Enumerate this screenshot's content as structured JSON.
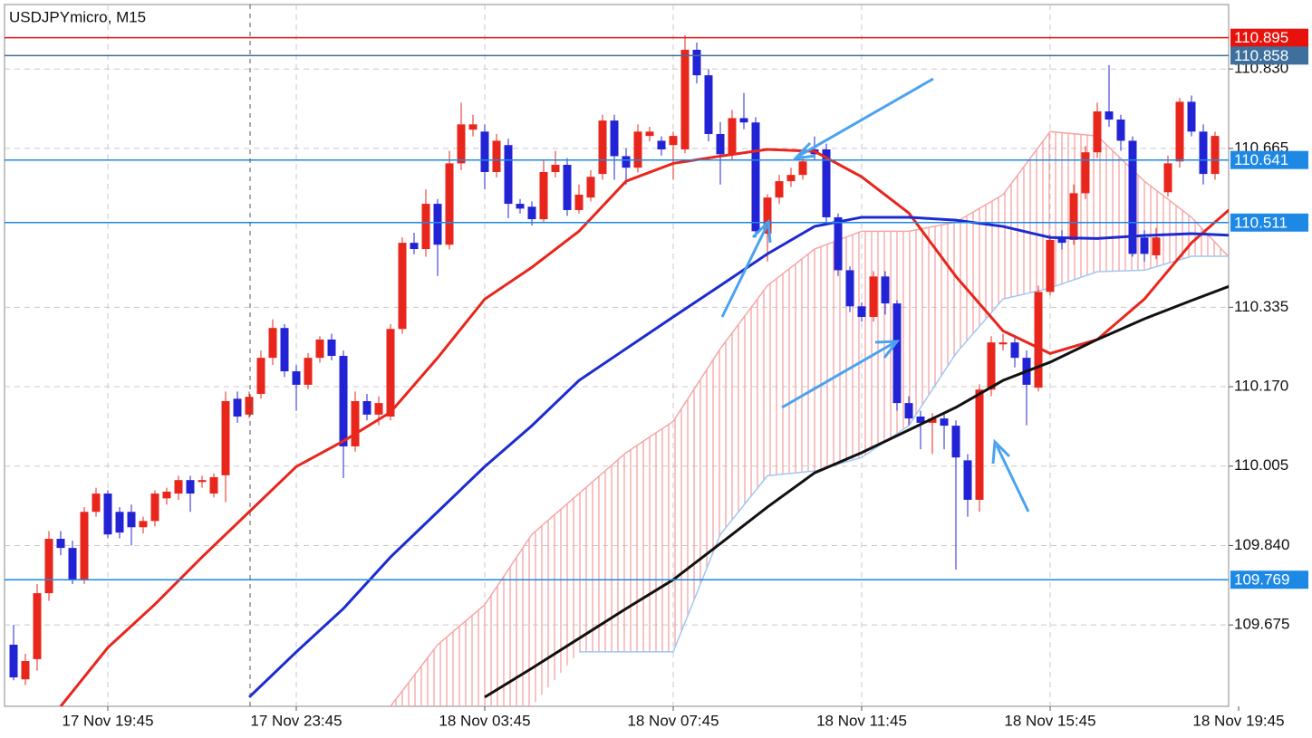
{
  "chart_data": {
    "type": "candlestick",
    "title": "USDJPYmicro, M15",
    "categories": [
      null,
      null,
      null,
      null,
      null,
      null,
      null,
      null,
      "17 Nov 19:45",
      null,
      null,
      null,
      null,
      null,
      null,
      null,
      null,
      null,
      null,
      null,
      null,
      null,
      null,
      null,
      "17 Nov 23:45",
      null,
      null,
      null,
      null,
      null,
      null,
      null,
      null,
      null,
      null,
      null,
      null,
      null,
      null,
      null,
      "18 Nov 03:45",
      null,
      null,
      null,
      null,
      null,
      null,
      null,
      null,
      null,
      null,
      null,
      null,
      null,
      null,
      null,
      "18 Nov 07:45",
      null,
      null,
      null,
      null,
      null,
      null,
      null,
      null,
      null,
      null,
      null,
      null,
      null,
      null,
      null,
      "18 Nov 11:45",
      null,
      null,
      null,
      null,
      null,
      null,
      null,
      null,
      null,
      null,
      null,
      null,
      null,
      null,
      null,
      "18 Nov 15:45",
      null,
      null,
      null,
      null,
      null,
      null,
      null,
      null,
      null,
      null,
      null,
      null,
      null,
      null,
      null,
      "18 Nov 19:45"
    ],
    "open": [
      109.634,
      109.562,
      109.604,
      109.741,
      109.854,
      109.835,
      109.769,
      109.91,
      109.948,
      109.91,
      109.91,
      109.878,
      109.891,
      109.938,
      109.948,
      109.976,
      109.972,
      109.948,
      109.986,
      110.145,
      110.112,
      110.155,
      110.23,
      110.292,
      110.202,
      110.174,
      110.23,
      110.268,
      110.234,
      110.046,
      110.14,
      110.112,
      110.108,
      110.29,
      110.469,
      110.456,
      110.55,
      110.465,
      110.634,
      110.704,
      110.7,
      110.616,
      110.672,
      110.55,
      110.544,
      110.518,
      110.616,
      110.631,
      110.537,
      110.563,
      110.612,
      110.723,
      110.649,
      110.625,
      110.691,
      110.681,
      110.672,
      110.663,
      110.87,
      110.817,
      110.695,
      110.653,
      110.728,
      110.719,
      110.488,
      110.563,
      110.597,
      110.61,
      110.663,
      110.663,
      110.522,
      110.412,
      110.337,
      110.315,
      110.399,
      110.343,
      110.136,
      110.108,
      110.095,
      110.104,
      110.089,
      110.017,
      109.935,
      110.164,
      110.258,
      110.262,
      110.23,
      110.168,
      110.367,
      110.48,
      110.475,
      110.572,
      110.657,
      110.742,
      110.725,
      110.681,
      110.48,
      110.443,
      110.574,
      110.638,
      110.762,
      110.7,
      110.612,
      null,
      null
    ],
    "high": [
      109.675,
      109.615,
      109.76,
      109.87,
      109.87,
      109.85,
      109.92,
      109.96,
      109.955,
      109.92,
      109.925,
      109.9,
      109.955,
      109.96,
      109.985,
      109.985,
      109.985,
      109.99,
      110.16,
      110.16,
      110.16,
      110.245,
      110.31,
      110.3,
      110.215,
      110.24,
      110.275,
      110.28,
      110.245,
      110.16,
      110.155,
      110.15,
      110.3,
      110.48,
      110.49,
      110.58,
      110.56,
      110.66,
      110.76,
      110.735,
      110.715,
      110.695,
      110.685,
      110.56,
      110.555,
      110.64,
      110.66,
      110.645,
      110.59,
      110.62,
      110.735,
      110.735,
      110.665,
      110.715,
      110.71,
      110.69,
      110.7,
      110.9,
      110.885,
      110.83,
      110.72,
      110.745,
      110.78,
      110.73,
      110.57,
      110.61,
      110.625,
      110.65,
      110.69,
      110.675,
      110.53,
      110.42,
      110.345,
      110.41,
      110.41,
      110.35,
      110.15,
      110.12,
      110.115,
      110.115,
      110.1,
      110.03,
      110.175,
      110.275,
      110.28,
      110.275,
      110.245,
      110.38,
      110.485,
      110.495,
      110.59,
      110.67,
      110.76,
      110.838,
      110.735,
      110.69,
      110.495,
      110.5,
      110.65,
      110.77,
      110.775,
      110.715,
      110.7,
      null,
      null
    ],
    "low": [
      109.56,
      109.55,
      109.58,
      109.725,
      109.82,
      109.76,
      109.76,
      109.9,
      109.855,
      109.855,
      109.84,
      109.865,
      109.88,
      109.925,
      109.935,
      109.91,
      109.96,
      109.94,
      109.93,
      110.095,
      110.105,
      110.145,
      110.215,
      110.19,
      110.12,
      110.165,
      110.22,
      110.225,
      109.98,
      110.035,
      110.1,
      110.09,
      110.1,
      110.28,
      110.445,
      110.44,
      110.4,
      110.455,
      110.62,
      110.69,
      110.58,
      110.605,
      110.52,
      110.53,
      110.505,
      110.51,
      110.605,
      110.525,
      110.53,
      110.555,
      110.6,
      110.6,
      110.59,
      110.615,
      110.68,
      110.65,
      110.6,
      110.655,
      110.8,
      110.68,
      110.59,
      110.64,
      110.705,
      110.48,
      110.43,
      110.55,
      110.585,
      110.6,
      110.64,
      110.51,
      110.4,
      110.325,
      110.305,
      110.305,
      110.32,
      110.12,
      110.09,
      110.04,
      110.03,
      110.04,
      109.79,
      109.9,
      109.91,
      110.15,
      110.245,
      110.21,
      110.09,
      110.16,
      110.36,
      110.455,
      110.465,
      110.56,
      110.645,
      110.71,
      110.66,
      110.44,
      110.43,
      110.435,
      110.565,
      110.625,
      110.69,
      110.59,
      110.6,
      null,
      null
    ],
    "close": [
      109.566,
      109.6,
      109.741,
      109.854,
      109.835,
      109.769,
      109.91,
      109.948,
      109.863,
      109.867,
      109.878,
      109.891,
      109.948,
      109.952,
      109.976,
      109.948,
      109.976,
      109.982,
      110.14,
      110.108,
      110.149,
      110.23,
      110.292,
      110.202,
      110.174,
      110.23,
      110.268,
      110.234,
      110.046,
      110.14,
      110.112,
      110.136,
      110.29,
      110.469,
      110.456,
      110.55,
      110.465,
      110.634,
      110.715,
      110.715,
      110.616,
      110.681,
      110.55,
      110.54,
      110.518,
      110.616,
      110.631,
      110.537,
      110.569,
      110.606,
      110.723,
      110.649,
      110.625,
      110.7,
      110.7,
      110.663,
      110.691,
      110.87,
      110.817,
      110.695,
      110.653,
      110.728,
      110.719,
      110.493,
      110.563,
      110.597,
      110.61,
      110.638,
      110.653,
      110.522,
      110.412,
      110.337,
      110.315,
      110.399,
      110.343,
      110.136,
      110.104,
      110.095,
      110.104,
      110.089,
      110.023,
      109.935,
      110.164,
      110.262,
      110.262,
      110.23,
      110.174,
      110.367,
      110.475,
      110.469,
      110.572,
      110.657,
      110.742,
      110.725,
      110.681,
      110.446,
      110.446,
      110.48,
      110.634,
      110.762,
      110.7,
      110.612,
      110.691,
      null,
      null
    ],
    "up_color": "#e8261c",
    "down_color": "#2323d6",
    "ylim": [
      109.506,
      110.964
    ],
    "yticks": [
      {
        "value": 110.83,
        "label": "110.830"
      },
      110.665,
      110.335,
      {
        "value": 110.17,
        "label": "110.170"
      },
      110.005,
      {
        "value": 109.84,
        "label": "109.840"
      },
      109.675
    ],
    "grid": true,
    "indicator_x": [
      0,
      4,
      8,
      12,
      16,
      20,
      24,
      28,
      32,
      36,
      40,
      44,
      48,
      52,
      56,
      60,
      64,
      68,
      72,
      76,
      80,
      84,
      88,
      92,
      96,
      100,
      104
    ],
    "lines": [
      {
        "color": "#e8261c",
        "values": [
          null,
          109.506,
          109.628,
          109.718,
          109.816,
          109.91,
          110.004,
          110.057,
          110.117,
          110.23,
          110.352,
          110.418,
          110.493,
          110.597,
          110.634,
          110.649,
          110.663,
          110.659,
          110.606,
          110.531,
          110.399,
          110.286,
          110.239,
          110.268,
          110.352,
          110.469,
          110.555
        ]
      },
      {
        "color": "#1c2bd0",
        "values": [
          null,
          null,
          null,
          null,
          null,
          109.525,
          109.619,
          109.709,
          109.816,
          109.91,
          110.004,
          110.089,
          110.183,
          110.249,
          110.315,
          110.38,
          110.446,
          110.503,
          110.522,
          110.522,
          110.516,
          110.503,
          110.48,
          110.478,
          110.484,
          110.488,
          110.484
        ]
      },
      {
        "color": "#111111",
        "values": [
          null,
          null,
          null,
          null,
          null,
          null,
          null,
          null,
          null,
          null,
          109.525,
          109.585,
          109.647,
          109.709,
          109.769,
          109.844,
          109.92,
          109.991,
          110.033,
          110.08,
          110.127,
          110.183,
          110.221,
          110.268,
          110.311,
          110.349,
          110.386
        ]
      }
    ],
    "cloud": {
      "color": "#f59a9a",
      "upper": {
        "color": "#f7a5a5",
        "values": [
          null,
          null,
          null,
          null,
          null,
          null,
          null,
          null,
          109.506,
          109.634,
          109.717,
          109.863,
          109.948,
          110.033,
          110.098,
          110.249,
          110.38,
          110.456,
          110.493,
          110.493,
          110.512,
          110.569,
          110.7,
          110.691,
          110.597,
          110.522,
          110.418
        ]
      },
      "lower": {
        "color": "#9fc8f2",
        "values": [
          null,
          null,
          null,
          null,
          null,
          null,
          null,
          null,
          null,
          null,
          null,
          null,
          109.619,
          109.619,
          109.619,
          109.863,
          109.985,
          109.995,
          110.023,
          110.089,
          110.239,
          110.352,
          110.375,
          110.409,
          110.412,
          110.441,
          110.441
        ]
      }
    },
    "levels": [
      {
        "value": 110.895,
        "color": "#e8120c"
      },
      {
        "value": 110.858,
        "color": "#3f6f9c"
      },
      {
        "value": 110.641,
        "color": "#1e88e5"
      },
      {
        "value": 110.511,
        "color": "#1e88e5"
      },
      {
        "value": 109.769,
        "color": "#1e88e5"
      }
    ]
  }
}
